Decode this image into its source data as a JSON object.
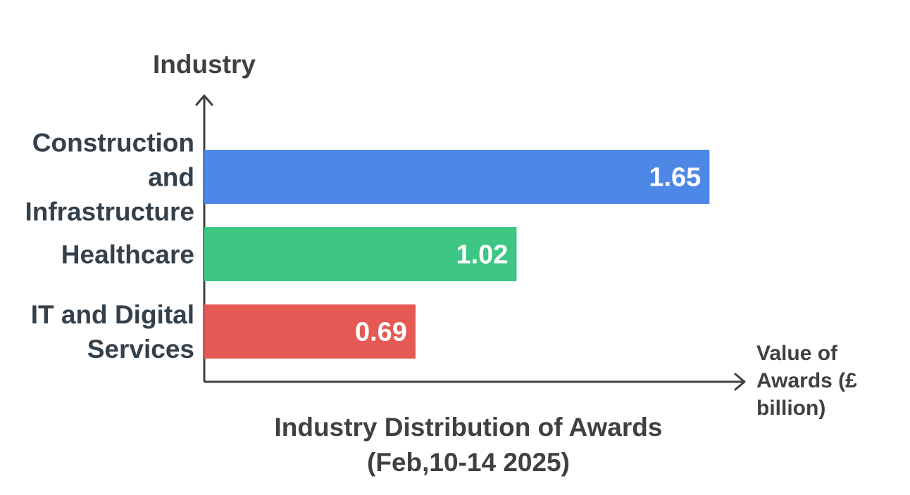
{
  "chart_data": {
    "type": "bar",
    "orientation": "horizontal",
    "title": [
      "Industry Distribution of Awards",
      "(Feb,10-14 2025)"
    ],
    "ylabel": "Industry",
    "xlabel": [
      "Value of",
      "Awards (£",
      "billion)"
    ],
    "categories": [
      [
        "Construction",
        "and",
        "Infrastructure"
      ],
      [
        "Healthcare"
      ],
      [
        "IT and Digital",
        "Services"
      ]
    ],
    "values": [
      1.65,
      1.02,
      0.69
    ],
    "value_labels": [
      "1.65",
      "1.02",
      "0.69"
    ],
    "colors": [
      "#4e88e6",
      "#3ec685",
      "#e55954"
    ],
    "xlim": [
      0,
      1.9
    ],
    "grid": false,
    "legend": "none"
  }
}
